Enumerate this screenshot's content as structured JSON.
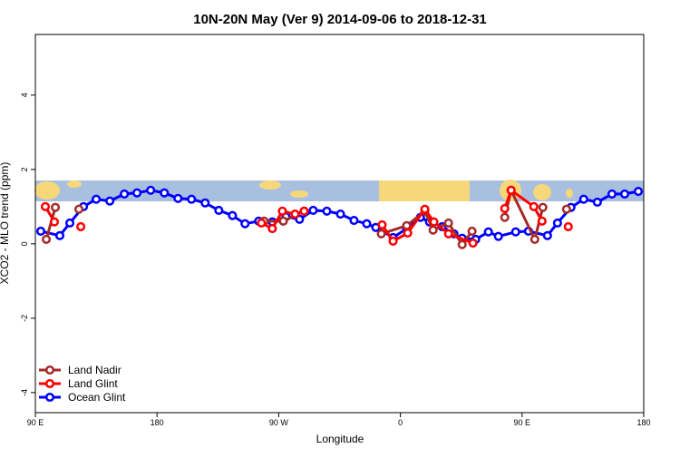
{
  "chart_data": {
    "type": "line",
    "title": "10N-20N May (Ver 9)   2014-09-06 to 2018-12-31",
    "x_label": "Longitude",
    "y_label": "XCO2 - MLO trend (ppm)",
    "xlim": [
      90,
      540
    ],
    "ylim": [
      -4.54,
      5.63
    ],
    "xticks": [
      {
        "value": 90,
        "label": "90 E"
      },
      180,
      {
        "value": 270,
        "label": "90 W"
      },
      {
        "value": 360,
        "label": "0"
      },
      {
        "value": 450,
        "label": "90 E"
      },
      {
        "value": 540,
        "label": "180"
      }
    ],
    "yticks": [
      -4,
      -2,
      0,
      2,
      4
    ],
    "legend": "bottom-left",
    "series": [
      {
        "name": "Land Nadir",
        "color": "#a52a2a",
        "x": [
          98.1,
          104.8,
          null,
          122.2,
          null,
          259.2,
          273.4,
          288.8,
          null,
          345.9,
          364.7,
          378.1,
          384.2,
          395.6,
          405.7,
          413.0,
          null,
          437.2,
          441.9,
          459.4,
          465.4,
          null,
          482.9
        ],
        "values": [
          0.12,
          0.98,
          null,
          0.93,
          null,
          0.61,
          0.61,
          0.88,
          null,
          0.27,
          0.49,
          0.88,
          0.37,
          0.56,
          -0.02,
          0.34,
          null,
          0.71,
          1.44,
          0.12,
          0.98,
          null,
          0.93
        ]
      },
      {
        "name": "Land Glint",
        "color": "#ff0000",
        "x": [
          97.4,
          104.1,
          null,
          123.6,
          null,
          257.2,
          265.3,
          272.7,
          282.1,
          288.8,
          null,
          346.5,
          354.6,
          365.4,
          378.1,
          384.8,
          395.6,
          413.7,
          null,
          437.2,
          441.9,
          458.7,
          464.8,
          null,
          484.2
        ],
        "values": [
          1.0,
          0.59,
          null,
          0.46,
          null,
          0.56,
          0.41,
          0.88,
          0.8,
          0.88,
          null,
          0.51,
          0.07,
          0.29,
          0.93,
          0.59,
          0.27,
          0.02,
          null,
          0.95,
          1.44,
          1.0,
          0.61,
          null,
          0.46
        ]
      },
      {
        "name": "Ocean Glint",
        "color": "#0000ff",
        "x": [
          94.0,
          108.1,
          115.5,
          125.6,
          135.0,
          145.1,
          155.8,
          165.2,
          175.3,
          185.4,
          195.5,
          205.5,
          215.6,
          225.7,
          235.8,
          245.1,
          255.2,
          265.3,
          275.4,
          285.4,
          295.5,
          305.6,
          315.7,
          325.7,
          335.1,
          341.8,
          354.6,
          364.7,
          374.8,
          381.5,
          390.9,
          399.6,
          405.7,
          415.7,
          425.1,
          432.5,
          445.3,
          454.7,
          468.8,
          476.2,
          486.2,
          495.6,
          505.7,
          516.5,
          525.9,
          536.0
        ],
        "values": [
          0.34,
          0.22,
          0.56,
          1.0,
          1.2,
          1.15,
          1.34,
          1.37,
          1.44,
          1.37,
          1.22,
          1.2,
          1.1,
          0.9,
          0.76,
          0.54,
          0.61,
          0.59,
          0.73,
          0.66,
          0.9,
          0.88,
          0.8,
          0.63,
          0.54,
          0.44,
          0.17,
          0.41,
          0.71,
          0.59,
          0.46,
          0.27,
          0.15,
          0.12,
          0.32,
          0.2,
          0.32,
          0.34,
          0.22,
          0.56,
          0.98,
          1.2,
          1.12,
          1.34,
          1.34,
          1.41
        ]
      }
    ]
  }
}
